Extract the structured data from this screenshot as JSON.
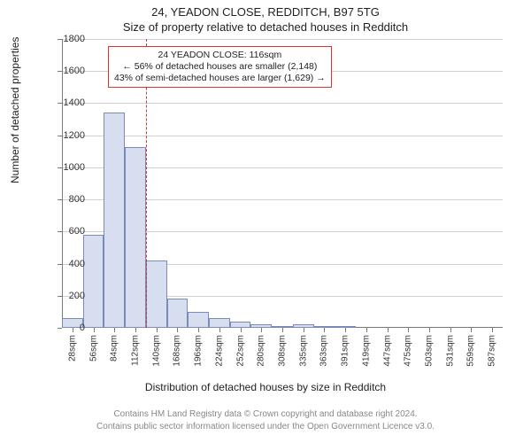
{
  "title_line1": "24, YEADON CLOSE, REDDITCH, B97 5TG",
  "title_line2": "Size of property relative to detached houses in Redditch",
  "chart": {
    "type": "histogram",
    "ylabel": "Number of detached properties",
    "xlabel": "Distribution of detached houses by size in Redditch",
    "ylim": [
      0,
      1800
    ],
    "ytick_step": 200,
    "bar_fill": "#d7def0",
    "bar_stroke": "#7a8bb8",
    "bar_stroke_width": 1,
    "grid_color": "#7a7a7a",
    "background": "#ffffff",
    "reference_line": {
      "x_category": "112sqm",
      "color": "#d33"
    },
    "annotation": {
      "lines": [
        "24 YEADON CLOSE: 116sqm",
        "← 56% of detached houses are smaller (2,148)",
        "43% of semi-detached houses are larger (1,629) →"
      ],
      "border_color": "#d33"
    },
    "categories": [
      "28sqm",
      "56sqm",
      "84sqm",
      "112sqm",
      "140sqm",
      "168sqm",
      "196sqm",
      "224sqm",
      "252sqm",
      "280sqm",
      "308sqm",
      "335sqm",
      "363sqm",
      "391sqm",
      "419sqm",
      "447sqm",
      "475sqm",
      "503sqm",
      "531sqm",
      "559sqm",
      "587sqm"
    ],
    "values": [
      60,
      580,
      1340,
      1125,
      420,
      180,
      100,
      60,
      40,
      20,
      2,
      20,
      2,
      2,
      0,
      0,
      0,
      0,
      0,
      0,
      0
    ],
    "xtick_fontsize": 10,
    "ytick_fontsize": 11,
    "label_fontsize": 12,
    "bar_width_ratio": 1.0
  },
  "footer_line1": "Contains HM Land Registry data © Crown copyright and database right 2024.",
  "footer_line2": "Contains public sector information licensed under the Open Government Licence v3.0."
}
